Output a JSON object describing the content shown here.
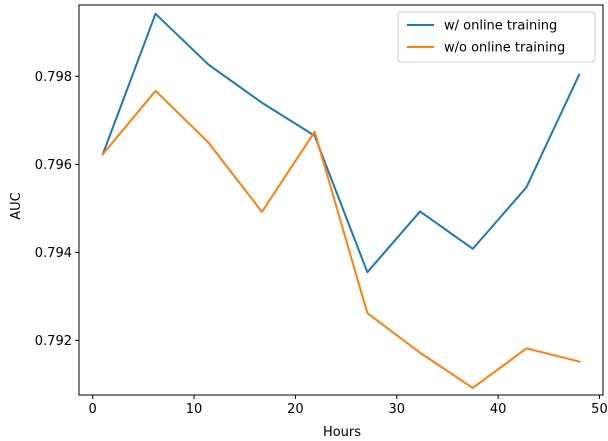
{
  "chart_data": {
    "type": "line",
    "title": "",
    "xlabel": "Hours",
    "ylabel": "AUC",
    "xlim": [
      -1.35,
      50.35
    ],
    "ylim": [
      0.79076,
      0.79962
    ],
    "xticks": [
      0,
      10,
      20,
      30,
      40,
      50
    ],
    "yticks": [
      0.792,
      0.794,
      0.796,
      0.798
    ],
    "xtick_labels": [
      "0",
      "10",
      "20",
      "30",
      "40",
      "50"
    ],
    "ytick_labels": [
      "0.792",
      "0.794",
      "0.796",
      "0.798"
    ],
    "grid": false,
    "legend_position": "top-right",
    "series": [
      {
        "name": "w/ online training",
        "color": "#1f77b4",
        "x": [
          1,
          6.2,
          11.4,
          16.7,
          21.9,
          27.1,
          32.3,
          37.5,
          42.8,
          48.0
        ],
        "y": [
          0.79623,
          0.79942,
          0.79827,
          0.7974,
          0.79665,
          0.79355,
          0.79493,
          0.79408,
          0.79548,
          0.79804
        ]
      },
      {
        "name": "w/o online training",
        "color": "#ff7f0e",
        "x": [
          1,
          6.2,
          11.4,
          16.7,
          21.9,
          27.1,
          32.3,
          37.5,
          42.8,
          48.0
        ],
        "y": [
          0.79623,
          0.79767,
          0.7965,
          0.79492,
          0.79674,
          0.79262,
          0.79172,
          0.79092,
          0.79182,
          0.79152
        ]
      }
    ]
  }
}
